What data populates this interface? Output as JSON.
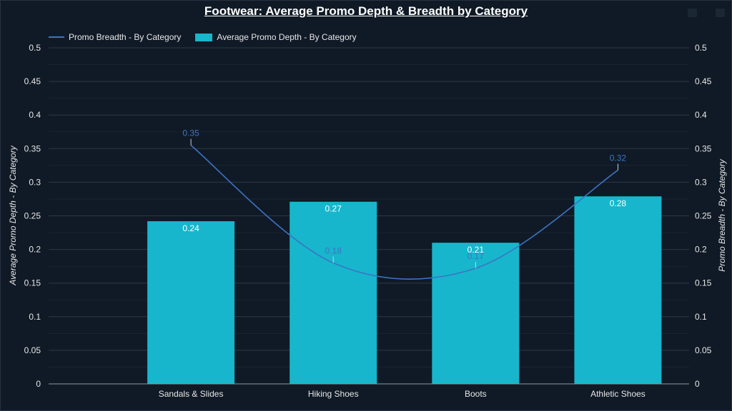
{
  "title": "Footwear: Average Promo Depth & Breadth by Category",
  "legend": {
    "line_label": "Promo Breadth - By Category",
    "bar_label": "Average Promo Depth - By Category"
  },
  "colors": {
    "background": "#101a26",
    "bar": "#17b6cc",
    "line": "#3d73c4",
    "grid": "#2c3846"
  },
  "chart_data": {
    "type": "bar",
    "title": "Footwear: Average Promo Depth & Breadth by Category",
    "categories": [
      "Sandals & Slides",
      "Hiking Shoes",
      "Boots",
      "Athletic Shoes"
    ],
    "series": [
      {
        "name": "Average Promo Depth - By Category",
        "type": "bar",
        "axis": "left",
        "values": [
          0.242,
          0.271,
          0.21,
          0.279
        ],
        "labels": [
          "0.24",
          "0.27",
          "0.21",
          "0.28"
        ]
      },
      {
        "name": "Promo Breadth - By Category",
        "type": "line",
        "axis": "right",
        "values": [
          0.355,
          0.18,
          0.172,
          0.318
        ],
        "labels": [
          "0.35",
          "0.18",
          "0.17",
          "0.32"
        ]
      }
    ],
    "ylabel": "Average Promo Depth - By Category",
    "y2label": "Promo Breadth - By Category",
    "ylim": [
      0,
      0.5
    ],
    "y2lim": [
      0,
      0.5
    ],
    "yticks": [
      "0",
      "0.05",
      "0.1",
      "0.15",
      "0.2",
      "0.25",
      "0.3",
      "0.35",
      "0.4",
      "0.45",
      "0.5"
    ],
    "grid": true,
    "legend_position": "top-left"
  }
}
